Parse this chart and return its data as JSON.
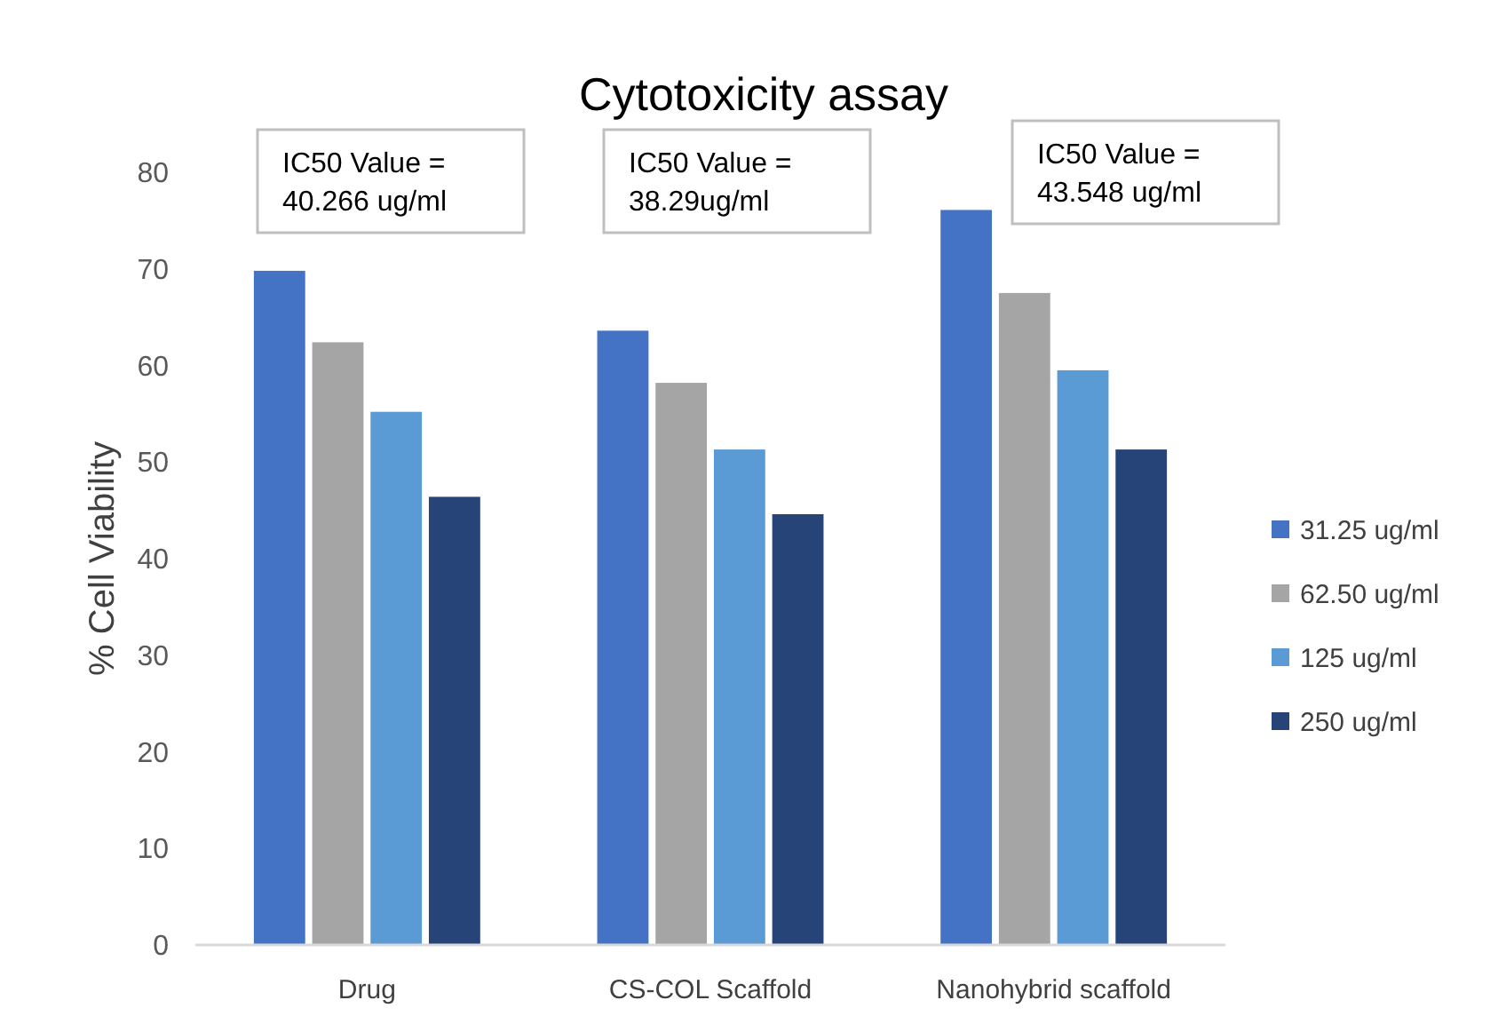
{
  "chart_data": {
    "type": "bar",
    "title": "Cytotoxicity assay",
    "ylabel": "% Cell Viability",
    "categories": [
      "Drug",
      "CS-COL Scaffold",
      "Nanohybrid scaffold"
    ],
    "series": [
      {
        "name": "31.25 ug/ml",
        "color": "#4472c4",
        "values": [
          69.8,
          63.6,
          76.1
        ]
      },
      {
        "name": "62.50 ug/ml",
        "color": "#a5a5a5",
        "values": [
          62.4,
          58.2,
          67.5
        ]
      },
      {
        "name": "125 ug/ml",
        "color": "#5b9bd5",
        "values": [
          55.2,
          51.3,
          59.5
        ]
      },
      {
        "name": "250 ug/ml",
        "color": "#264478",
        "values": [
          46.4,
          44.6,
          51.3
        ]
      }
    ],
    "ylim": [
      0,
      80
    ],
    "yticks": [
      0,
      10,
      20,
      30,
      40,
      50,
      60,
      70,
      80
    ],
    "grid": false,
    "legend": "right",
    "annotations": [
      "IC50 Value =\n40.266 ug/ml",
      "IC50 Value =\n38.29ug/ml",
      "IC50 Value =\n43.548 ug/ml"
    ]
  }
}
